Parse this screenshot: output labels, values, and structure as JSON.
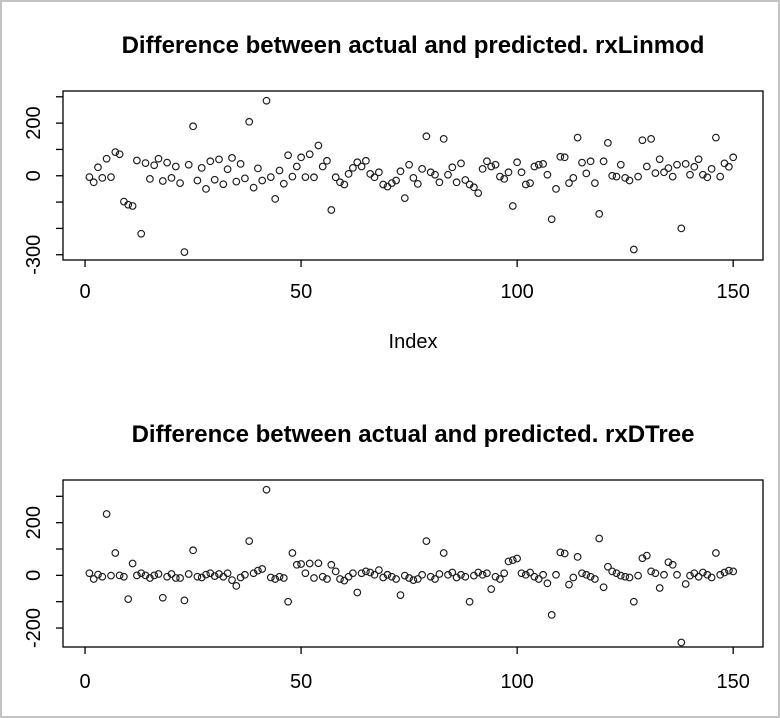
{
  "window": {
    "background": "#ffffff",
    "frame_border_color": "#c3c3c3",
    "axis_color": "#000000",
    "point_color": "#1c1c1c"
  },
  "chart_data": [
    {
      "type": "scatter",
      "title": "Difference between actual and predicted. rxLinmod",
      "xlabel": "Index",
      "ylabel": "",
      "marker": "open-circle",
      "x_description": "Index 1 to 150",
      "x_ticks": [
        0,
        50,
        100,
        150
      ],
      "xlim": [
        -5.1,
        156.9
      ],
      "ylim": [
        -320,
        322
      ],
      "grid": false,
      "legend": "none",
      "y_ticks": [
        {
          "value": 300,
          "label": ""
        },
        {
          "value": 200,
          "label": "200"
        },
        {
          "value": 100,
          "label": ""
        },
        {
          "value": 0,
          "label": "0"
        },
        {
          "value": -100,
          "label": ""
        },
        {
          "value": -200,
          "label": ""
        },
        {
          "value": -300,
          "label": "-300"
        }
      ],
      "values": [
        -5,
        -25,
        32,
        -8,
        65,
        -5,
        90,
        82,
        -98,
        -110,
        -115,
        58,
        -220,
        48,
        -12,
        40,
        65,
        -20,
        50,
        -8,
        35,
        -28,
        -290,
        42,
        188,
        -18,
        30,
        -50,
        55,
        -15,
        62,
        -32,
        25,
        68,
        -22,
        45,
        -10,
        205,
        -45,
        28,
        -18,
        285,
        -5,
        -88,
        20,
        -30,
        78,
        -3,
        35,
        70,
        -5,
        82,
        -6,
        115,
        35,
        57,
        -130,
        -6,
        -25,
        -33,
        7,
        30,
        51,
        35,
        57,
        7,
        -6,
        13,
        -33,
        -41,
        -28,
        -18,
        17,
        -85,
        42,
        -8,
        -31,
        26,
        150,
        13,
        4,
        -25,
        140,
        4,
        32,
        -25,
        47,
        -16,
        -33,
        -44,
        -66,
        26,
        55,
        35,
        42,
        -3,
        -12,
        13,
        -115,
        51,
        13,
        -33,
        -28,
        35,
        42,
        45,
        4,
        -165,
        -50,
        72,
        70,
        -28,
        -8,
        145,
        50,
        9,
        55,
        -28,
        -145,
        55,
        125,
        0,
        -3,
        42,
        -8,
        -18,
        -280,
        -3,
        135,
        35,
        140,
        10,
        63,
        13,
        29,
        -3,
        42,
        -200,
        45,
        4,
        34,
        63,
        4,
        -6,
        26,
        145,
        -3,
        47,
        34,
        70
      ]
    },
    {
      "type": "scatter",
      "title": "Difference between actual and predicted. rxDTree",
      "xlabel": "",
      "ylabel": "",
      "marker": "open-circle",
      "x_description": "Index 1 to 150",
      "x_ticks": [
        0,
        50,
        100,
        150
      ],
      "xlim": [
        -5.1,
        156.9
      ],
      "ylim": [
        -272,
        362
      ],
      "grid": false,
      "legend": "none",
      "y_ticks": [
        {
          "value": 300,
          "label": ""
        },
        {
          "value": 200,
          "label": "200"
        },
        {
          "value": 100,
          "label": ""
        },
        {
          "value": 0,
          "label": "0"
        },
        {
          "value": -100,
          "label": ""
        },
        {
          "value": -200,
          "label": "-200"
        }
      ],
      "values": [
        8,
        -14,
        3,
        -5,
        233,
        -1,
        85,
        0,
        -5,
        -90,
        45,
        0,
        8,
        0,
        -10,
        0,
        5,
        -85,
        -5,
        5,
        -10,
        -10,
        -95,
        5,
        95,
        -5,
        -8,
        3,
        8,
        -3,
        5,
        -5,
        8,
        -18,
        -40,
        -8,
        2,
        130,
        8,
        18,
        24,
        325,
        -8,
        -14,
        -5,
        -10,
        -100,
        85,
        40,
        43,
        8,
        45,
        -10,
        46,
        -5,
        -14,
        40,
        15,
        -14,
        -20,
        -5,
        8,
        -65,
        8,
        15,
        11,
        2,
        20,
        -8,
        2,
        -5,
        -14,
        -75,
        -1,
        -10,
        -18,
        -14,
        2,
        130,
        -5,
        -14,
        5,
        85,
        2,
        11,
        -8,
        2,
        -5,
        -100,
        -1,
        11,
        2,
        8,
        -52,
        -5,
        -14,
        8,
        53,
        58,
        64,
        8,
        2,
        11,
        -5,
        -14,
        2,
        -30,
        -150,
        2,
        87,
        83,
        -35,
        -8,
        70,
        8,
        2,
        -5,
        -14,
        140,
        -45,
        33,
        15,
        8,
        -1,
        -5,
        -8,
        -100,
        -1,
        65,
        75,
        15,
        8,
        -48,
        2,
        50,
        40,
        2,
        -255,
        -33,
        -1,
        8,
        -5,
        11,
        2,
        -8,
        85,
        2,
        11,
        18,
        15
      ]
    }
  ]
}
